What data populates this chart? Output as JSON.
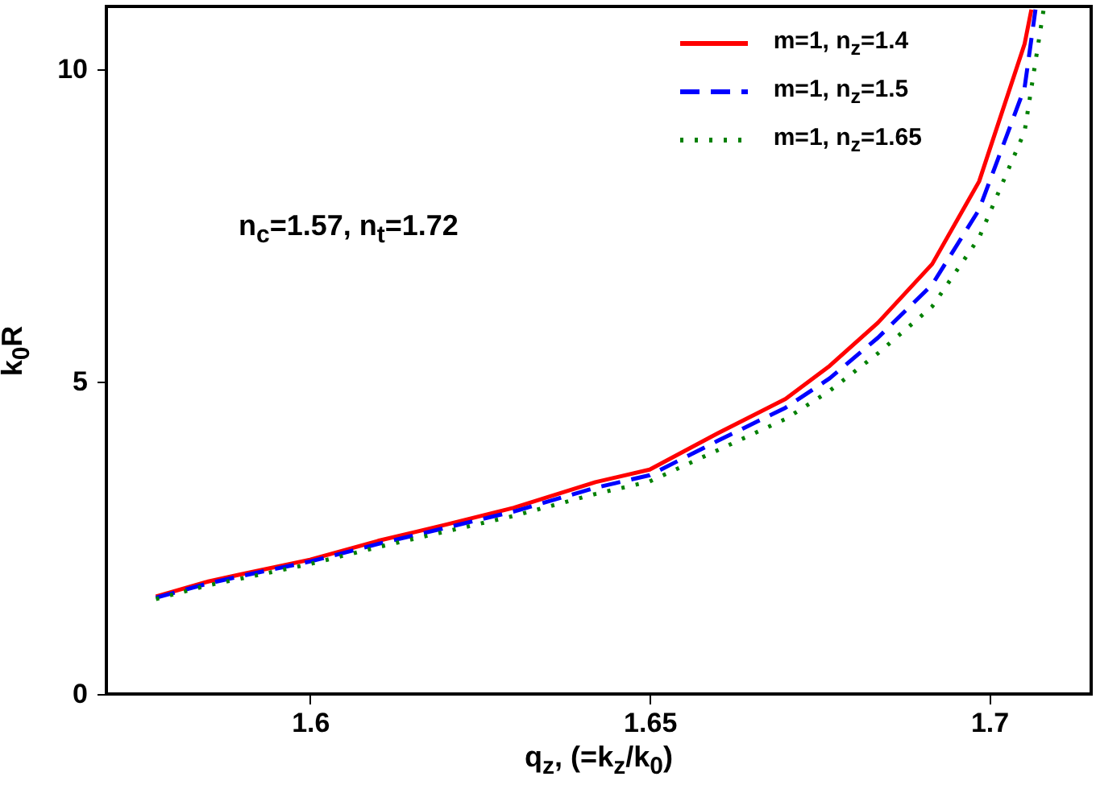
{
  "chart_data": {
    "type": "line",
    "xlabel": "q$_{z}$,  (=k$_{z}$/k$_{0}$)",
    "ylabel": "k$_{0}$R",
    "annotations": [
      "n$_{c}$=1.57, n$_{t}$=1.72"
    ],
    "series": [
      {
        "name": "m=1, n$_{z}$=1.4",
        "color": "#ff0000",
        "line_style": "solid",
        "x": [
          1.5773,
          1.585,
          1.59,
          1.6,
          1.61,
          1.62,
          1.63,
          1.642,
          1.65,
          1.66,
          1.67,
          1.6765,
          1.6836,
          1.6916,
          1.6985,
          1.7052,
          1.7062
        ],
        "values": [
          1.56,
          1.8,
          1.92,
          2.15,
          2.45,
          2.71,
          2.98,
          3.39,
          3.59,
          4.17,
          4.72,
          5.25,
          5.94,
          6.88,
          8.2,
          10.4,
          10.95
        ]
      },
      {
        "name": "m=1, n$_{z}$=1.5",
        "color": "#0000ff",
        "line_style": "dashed",
        "x": [
          1.5773,
          1.585,
          1.59,
          1.6,
          1.61,
          1.62,
          1.63,
          1.642,
          1.65,
          1.66,
          1.67,
          1.6765,
          1.6836,
          1.6916,
          1.6985,
          1.7052,
          1.7068
        ],
        "values": [
          1.54,
          1.77,
          1.89,
          2.12,
          2.4,
          2.66,
          2.92,
          3.3,
          3.5,
          4.05,
          4.58,
          5.05,
          5.7,
          6.55,
          7.75,
          9.7,
          10.95
        ]
      },
      {
        "name": "m=1, n$_{z}$=1.65",
        "color": "#008000",
        "line_style": "dotted",
        "x": [
          1.5773,
          1.585,
          1.59,
          1.6,
          1.61,
          1.62,
          1.63,
          1.642,
          1.65,
          1.66,
          1.67,
          1.6765,
          1.6836,
          1.6916,
          1.6985,
          1.7052,
          1.708
        ],
        "values": [
          1.52,
          1.74,
          1.85,
          2.08,
          2.35,
          2.6,
          2.85,
          3.2,
          3.4,
          3.9,
          4.4,
          4.85,
          5.45,
          6.2,
          7.3,
          9.0,
          10.95
        ]
      }
    ],
    "xlim": [
      1.57,
      1.715
    ],
    "ylim": [
      0,
      11
    ],
    "xticks": [
      1.6,
      1.65,
      1.7
    ],
    "yticks": [
      0,
      5,
      10
    ],
    "grid": false,
    "legend": "top right"
  }
}
